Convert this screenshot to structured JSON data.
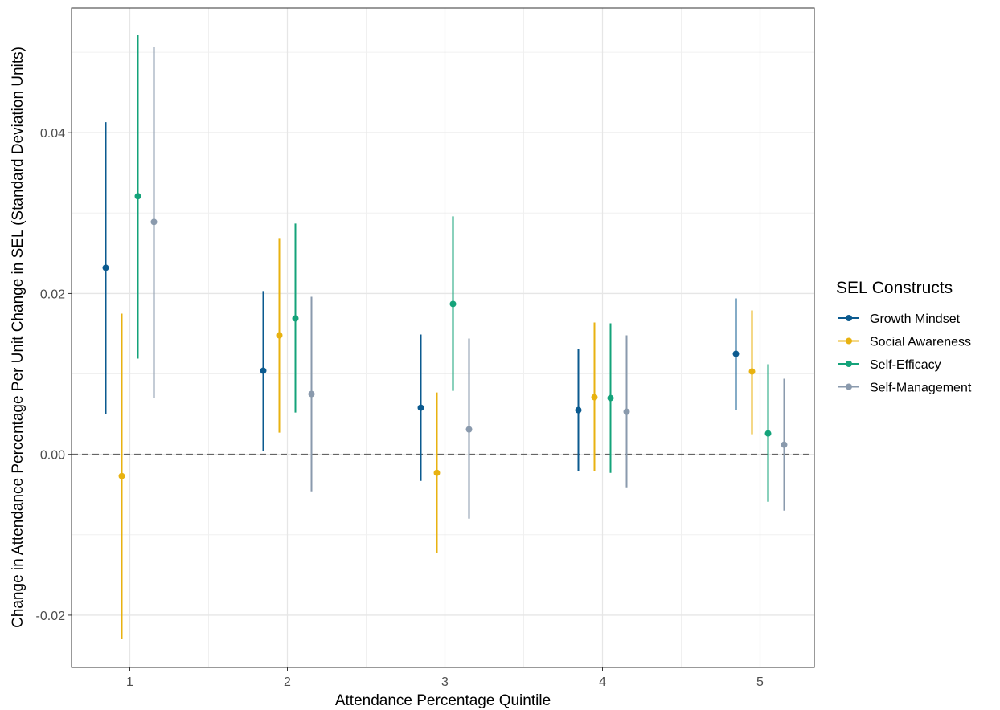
{
  "chart_data": {
    "type": "scatter",
    "subtype": "point-range",
    "xlabel": "Attendance Percentage Quintile",
    "ylabel": "Change in Attendance Percentage Per Unit Change in SEL (Standard Deviation Units)",
    "categories": [
      "1",
      "2",
      "3",
      "4",
      "5"
    ],
    "ylim": [
      -0.0265,
      0.0555
    ],
    "yticks": [
      -0.02,
      0.0,
      0.02,
      0.04
    ],
    "ytick_labels": [
      "-0.02",
      "0.00",
      "0.02",
      "0.04"
    ],
    "grid": true,
    "reference_line": {
      "y": 0.0,
      "style": "dashed"
    },
    "legend": {
      "title": "SEL Constructs",
      "position": "right"
    },
    "series": [
      {
        "name": "Growth Mindset",
        "color": "#0b5a8f",
        "estimates": [
          0.0232,
          0.0104,
          0.0058,
          0.0055,
          0.0125
        ],
        "lower": [
          0.005,
          0.0004,
          -0.0033,
          -0.0021,
          0.0055
        ],
        "upper": [
          0.0413,
          0.0203,
          0.0149,
          0.0131,
          0.0194
        ]
      },
      {
        "name": "Social Awareness",
        "color": "#e8b210",
        "estimates": [
          -0.0027,
          0.0148,
          -0.0023,
          0.0071,
          0.0103
        ],
        "lower": [
          -0.0229,
          0.0027,
          -0.0123,
          -0.0021,
          0.0025
        ],
        "upper": [
          0.0175,
          0.0269,
          0.0077,
          0.0164,
          0.0179
        ]
      },
      {
        "name": "Self-Efficacy",
        "color": "#14a37a",
        "estimates": [
          0.0321,
          0.0169,
          0.0187,
          0.007,
          0.0026
        ],
        "lower": [
          0.0119,
          0.0052,
          0.0079,
          -0.0023,
          -0.0059
        ],
        "upper": [
          0.0521,
          0.0287,
          0.0296,
          0.0163,
          0.0112
        ]
      },
      {
        "name": "Self-Management",
        "color": "#8a9aad",
        "estimates": [
          0.0289,
          0.0075,
          0.0031,
          0.0053,
          0.0012
        ],
        "lower": [
          0.007,
          -0.0046,
          -0.008,
          -0.0041,
          -0.007
        ],
        "upper": [
          0.0506,
          0.0196,
          0.0144,
          0.0148,
          0.0094
        ]
      }
    ]
  }
}
